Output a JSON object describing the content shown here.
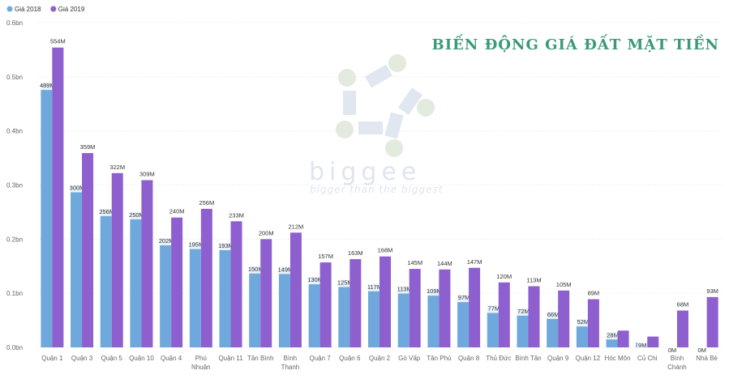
{
  "chart_data": {
    "type": "bar",
    "title": "BIẾN ĐỘNG GIÁ ĐẤT MẶT TIỀN",
    "categories": [
      [
        "Quận 1"
      ],
      [
        "Quận 3"
      ],
      [
        "Quận 5"
      ],
      [
        "Quận 10"
      ],
      [
        "Quận 4"
      ],
      [
        "Phú",
        "Nhuận"
      ],
      [
        "Quận 11"
      ],
      [
        "Tân Bình"
      ],
      [
        "Bình",
        "Thạnh"
      ],
      [
        "Quận 7"
      ],
      [
        "Quận 6"
      ],
      [
        "Quận 2"
      ],
      [
        "Gò Vấp"
      ],
      [
        "Tân Phú"
      ],
      [
        "Quận 8"
      ],
      [
        "Thủ Đức"
      ],
      [
        "Bình Tân"
      ],
      [
        "Quận 9"
      ],
      [
        "Quận 12"
      ],
      [
        "Hóc Môn"
      ],
      [
        "Củ Chi"
      ],
      [
        "Bình",
        "Chánh"
      ],
      [
        "Nhà Bè"
      ]
    ],
    "series": [
      {
        "name": "Giá 2018",
        "color": "#6fa8dc",
        "values": [
          489,
          300,
          256,
          250,
          202,
          195,
          193,
          150,
          149,
          130,
          125,
          117,
          113,
          109,
          97,
          77,
          72,
          66,
          52,
          28,
          9,
          0,
          0
        ],
        "labels": [
          "489M",
          "300M",
          "256M",
          "250M",
          "202M",
          "195M",
          "193M",
          "150M",
          "149M",
          "130M",
          "125M",
          "117M",
          "113M",
          "109M",
          "97M",
          "77M",
          "72M",
          "66M",
          "52M",
          "28M",
          "9M",
          "0M",
          "0M"
        ]
      },
      {
        "name": "Giá 2019",
        "color": "#8e5fcf",
        "values": [
          554,
          359,
          322,
          309,
          240,
          256,
          233,
          200,
          212,
          157,
          163,
          168,
          145,
          144,
          147,
          120,
          113,
          105,
          89,
          31,
          20,
          68,
          93
        ],
        "labels": [
          "554M",
          "359M",
          "322M",
          "309M",
          "240M",
          "256M",
          "233M",
          "200M",
          "212M",
          "157M",
          "163M",
          "168M",
          "145M",
          "144M",
          "147M",
          "120M",
          "113M",
          "105M",
          "89M",
          "",
          "",
          "68M",
          "93M"
        ]
      }
    ],
    "ylim": [
      0,
      600
    ],
    "yticks": [
      0,
      100,
      200,
      300,
      400,
      500,
      600
    ],
    "ytick_labels": [
      "0.0bn",
      "0.1bn",
      "0.2bn",
      "0.3bn",
      "0.4bn",
      "0.5bn",
      "0.6bn"
    ],
    "grid": true,
    "legend_position": "top-left"
  },
  "watermark": {
    "brand": "biggee",
    "tagline": "bigger than the biggest"
  }
}
